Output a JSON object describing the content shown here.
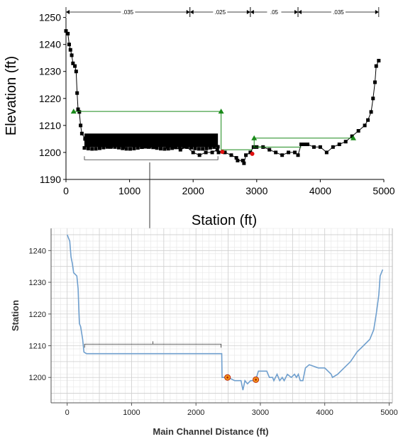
{
  "chart_data": [
    {
      "type": "scatter",
      "xlabel": "Station (ft)",
      "ylabel": "Elevation (ft)",
      "xlim": [
        0,
        5000
      ],
      "ylim": [
        1190,
        1252
      ],
      "x_ticks": [
        "0",
        "1000",
        "2000",
        "3000",
        "4000",
        "5000"
      ],
      "y_ticks": [
        "1190",
        "1200",
        "1210",
        "1220",
        "1230",
        "1240",
        "1250"
      ],
      "mannings_n": [
        {
          "label": ".035",
          "from": 0,
          "to": 1950
        },
        {
          "label": ".025",
          "from": 1950,
          "to": 2900
        },
        {
          "label": ".05",
          "from": 2900,
          "to": 3650
        },
        {
          "label": ".035",
          "from": 3650,
          "to": 4920
        }
      ],
      "ground": [
        [
          0,
          1245
        ],
        [
          30,
          1244
        ],
        [
          50,
          1240
        ],
        [
          70,
          1238
        ],
        [
          90,
          1236
        ],
        [
          110,
          1233
        ],
        [
          140,
          1232
        ],
        [
          160,
          1230
        ],
        [
          175,
          1222
        ],
        [
          190,
          1216
        ],
        [
          210,
          1215
        ],
        [
          230,
          1210
        ],
        [
          250,
          1207
        ],
        [
          300,
          1205
        ],
        [
          400,
          1204
        ],
        [
          500,
          1203
        ],
        [
          600,
          1203
        ],
        [
          700,
          1202
        ],
        [
          800,
          1203
        ],
        [
          900,
          1202
        ],
        [
          1000,
          1203
        ],
        [
          1100,
          1203
        ],
        [
          1200,
          1202
        ],
        [
          1300,
          1202
        ],
        [
          1400,
          1202
        ],
        [
          1500,
          1203
        ],
        [
          1600,
          1202
        ],
        [
          1700,
          1202
        ],
        [
          1800,
          1201
        ],
        [
          1900,
          1202
        ],
        [
          2000,
          1200
        ],
        [
          2100,
          1199
        ],
        [
          2200,
          1200
        ],
        [
          2300,
          1200
        ],
        [
          2380,
          1201
        ],
        [
          2400,
          1200
        ],
        [
          2500,
          1200
        ],
        [
          2600,
          1199
        ],
        [
          2680,
          1198
        ],
        [
          2700,
          1197
        ],
        [
          2780,
          1197
        ],
        [
          2800,
          1196
        ],
        [
          2830,
          1199
        ],
        [
          2900,
          1200
        ],
        [
          2950,
          1202
        ],
        [
          3000,
          1202
        ],
        [
          3100,
          1202
        ],
        [
          3200,
          1201
        ],
        [
          3300,
          1200
        ],
        [
          3400,
          1199
        ],
        [
          3500,
          1200
        ],
        [
          3600,
          1200
        ],
        [
          3650,
          1199
        ],
        [
          3700,
          1203
        ],
        [
          3750,
          1203
        ],
        [
          3800,
          1203
        ],
        [
          3900,
          1202
        ],
        [
          4000,
          1202
        ],
        [
          4100,
          1200
        ],
        [
          4200,
          1202
        ],
        [
          4300,
          1203
        ],
        [
          4400,
          1204
        ],
        [
          4500,
          1206
        ],
        [
          4600,
          1208
        ],
        [
          4700,
          1210
        ],
        [
          4750,
          1212
        ],
        [
          4800,
          1215
        ],
        [
          4830,
          1220
        ],
        [
          4860,
          1226
        ],
        [
          4880,
          1232
        ],
        [
          4920,
          1234
        ]
      ],
      "dense_block": {
        "x_from": 290,
        "x_to": 2390,
        "y_from": 1202,
        "y_to": 1207
      },
      "bank_stations": [
        [
          2460,
          1200.2
        ],
        [
          2930,
          1199.5
        ]
      ],
      "levees_left": [
        [
          120,
          1215.2
        ],
        [
          2440,
          1215.2
        ]
      ],
      "levees_right": [
        [
          2960,
          1205.3
        ],
        [
          4520,
          1205.3
        ]
      ],
      "bracket": {
        "x_from": 290,
        "x_to": 2390,
        "y": 1197.3
      }
    },
    {
      "type": "line",
      "xlabel": "Main Channel Distance (ft)",
      "ylabel": "Station",
      "xlim": [
        -250,
        5050
      ],
      "ylim": [
        1192,
        1247
      ],
      "x_ticks": [
        "0",
        "1000",
        "2000",
        "3000",
        "4000",
        "5000"
      ],
      "y_ticks": [
        "1200",
        "1210",
        "1220",
        "1230",
        "1240"
      ],
      "line_color": "#6f9fce",
      "profile": [
        [
          0,
          1245
        ],
        [
          40,
          1243
        ],
        [
          60,
          1238
        ],
        [
          80,
          1236
        ],
        [
          100,
          1233
        ],
        [
          150,
          1232
        ],
        [
          170,
          1228
        ],
        [
          180,
          1222
        ],
        [
          190,
          1217
        ],
        [
          210,
          1216
        ],
        [
          240,
          1212
        ],
        [
          260,
          1208
        ],
        [
          300,
          1207.5
        ],
        [
          2400,
          1207.5
        ],
        [
          2405,
          1200
        ],
        [
          2500,
          1200
        ],
        [
          2600,
          1199
        ],
        [
          2700,
          1199
        ],
        [
          2730,
          1196
        ],
        [
          2760,
          1199
        ],
        [
          2800,
          1198
        ],
        [
          2850,
          1199
        ],
        [
          2900,
          1199
        ],
        [
          2940,
          1200
        ],
        [
          2970,
          1202
        ],
        [
          3020,
          1202
        ],
        [
          3100,
          1202
        ],
        [
          3140,
          1200
        ],
        [
          3190,
          1200
        ],
        [
          3210,
          1199
        ],
        [
          3260,
          1201
        ],
        [
          3300,
          1199
        ],
        [
          3340,
          1200
        ],
        [
          3370,
          1199
        ],
        [
          3420,
          1201
        ],
        [
          3480,
          1200
        ],
        [
          3530,
          1201
        ],
        [
          3560,
          1200
        ],
        [
          3590,
          1201
        ],
        [
          3620,
          1199
        ],
        [
          3660,
          1199
        ],
        [
          3700,
          1203
        ],
        [
          3760,
          1204
        ],
        [
          3900,
          1203
        ],
        [
          4000,
          1203
        ],
        [
          4100,
          1201
        ],
        [
          4120,
          1200
        ],
        [
          4200,
          1201
        ],
        [
          4300,
          1203
        ],
        [
          4400,
          1205
        ],
        [
          4500,
          1208
        ],
        [
          4600,
          1210
        ],
        [
          4700,
          1212
        ],
        [
          4760,
          1215
        ],
        [
          4800,
          1220
        ],
        [
          4840,
          1226
        ],
        [
          4860,
          1232
        ],
        [
          4900,
          1234
        ]
      ],
      "markers": [
        [
          2490,
          1200
        ],
        [
          2930,
          1199.3
        ]
      ],
      "marker_color": "#f0a020",
      "bracket": {
        "x_from": 270,
        "x_to": 2390,
        "y": 1210.5
      }
    }
  ]
}
